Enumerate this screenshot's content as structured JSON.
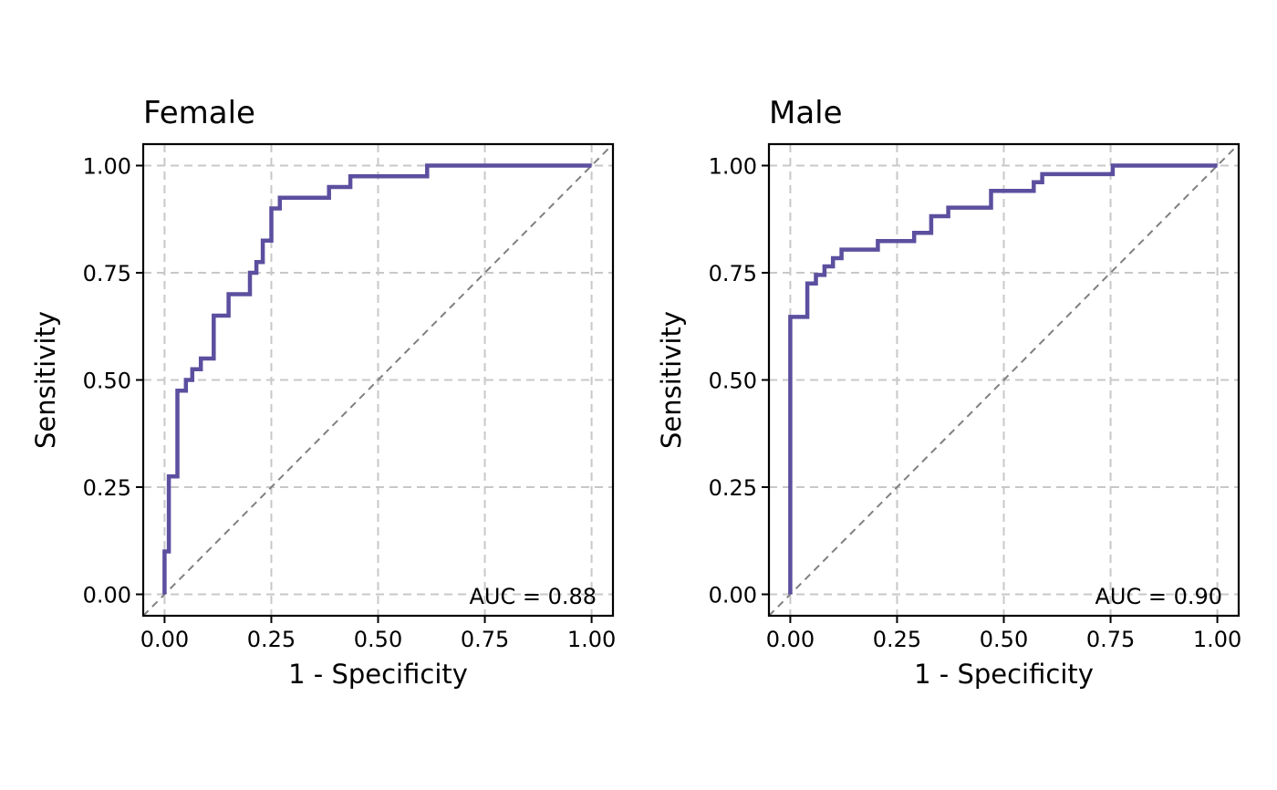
{
  "colors": {
    "roc_line": "#5b4f9f",
    "reference_line": "#808080",
    "grid": "#c8c8c8"
  },
  "chart_data": [
    {
      "type": "line",
      "title": "Female",
      "xlabel": "1 - Specificity",
      "ylabel": "Sensitivity",
      "xlim": [
        -0.05,
        1.05
      ],
      "ylim": [
        -0.05,
        1.05
      ],
      "xticks": [
        "0.00",
        "0.25",
        "0.50",
        "0.75",
        "1.00"
      ],
      "yticks": [
        "0.00",
        "0.25",
        "0.50",
        "0.75",
        "1.00"
      ],
      "grid": true,
      "reference_diagonal": true,
      "annotation": "AUC = 0.88",
      "series": [
        {
          "x": [
            0.0,
            0.0,
            0.01,
            0.01,
            0.03,
            0.03,
            0.05,
            0.05,
            0.065,
            0.065,
            0.085,
            0.085,
            0.115,
            0.115,
            0.15,
            0.15,
            0.2,
            0.2,
            0.215,
            0.215,
            0.23,
            0.23,
            0.25,
            0.25,
            0.27,
            0.27,
            0.385,
            0.385,
            0.435,
            0.435,
            0.615,
            0.615,
            1.0
          ],
          "y": [
            0.0,
            0.1,
            0.1,
            0.275,
            0.275,
            0.475,
            0.475,
            0.5,
            0.5,
            0.525,
            0.525,
            0.55,
            0.55,
            0.65,
            0.65,
            0.7,
            0.7,
            0.75,
            0.75,
            0.775,
            0.775,
            0.825,
            0.825,
            0.9,
            0.9,
            0.925,
            0.925,
            0.95,
            0.95,
            0.975,
            0.975,
            1.0,
            1.0
          ]
        }
      ]
    },
    {
      "type": "line",
      "title": "Male",
      "xlabel": "1 - Specificity",
      "ylabel": "Sensitivity",
      "xlim": [
        -0.05,
        1.05
      ],
      "ylim": [
        -0.05,
        1.05
      ],
      "xticks": [
        "0.00",
        "0.25",
        "0.50",
        "0.75",
        "1.00"
      ],
      "yticks": [
        "0.00",
        "0.25",
        "0.50",
        "0.75",
        "1.00"
      ],
      "grid": true,
      "reference_diagonal": true,
      "annotation": "AUC = 0.90",
      "series": [
        {
          "x": [
            0.0,
            0.0,
            0.04,
            0.04,
            0.06,
            0.06,
            0.08,
            0.08,
            0.1,
            0.1,
            0.12,
            0.12,
            0.205,
            0.205,
            0.29,
            0.29,
            0.33,
            0.33,
            0.37,
            0.37,
            0.47,
            0.47,
            0.57,
            0.57,
            0.59,
            0.59,
            0.755,
            0.755,
            1.0
          ],
          "y": [
            0.0,
            0.647,
            0.647,
            0.725,
            0.725,
            0.745,
            0.745,
            0.765,
            0.765,
            0.784,
            0.784,
            0.804,
            0.804,
            0.824,
            0.824,
            0.843,
            0.843,
            0.882,
            0.882,
            0.902,
            0.902,
            0.941,
            0.941,
            0.961,
            0.961,
            0.98,
            0.98,
            1.0,
            1.0
          ]
        }
      ]
    }
  ]
}
